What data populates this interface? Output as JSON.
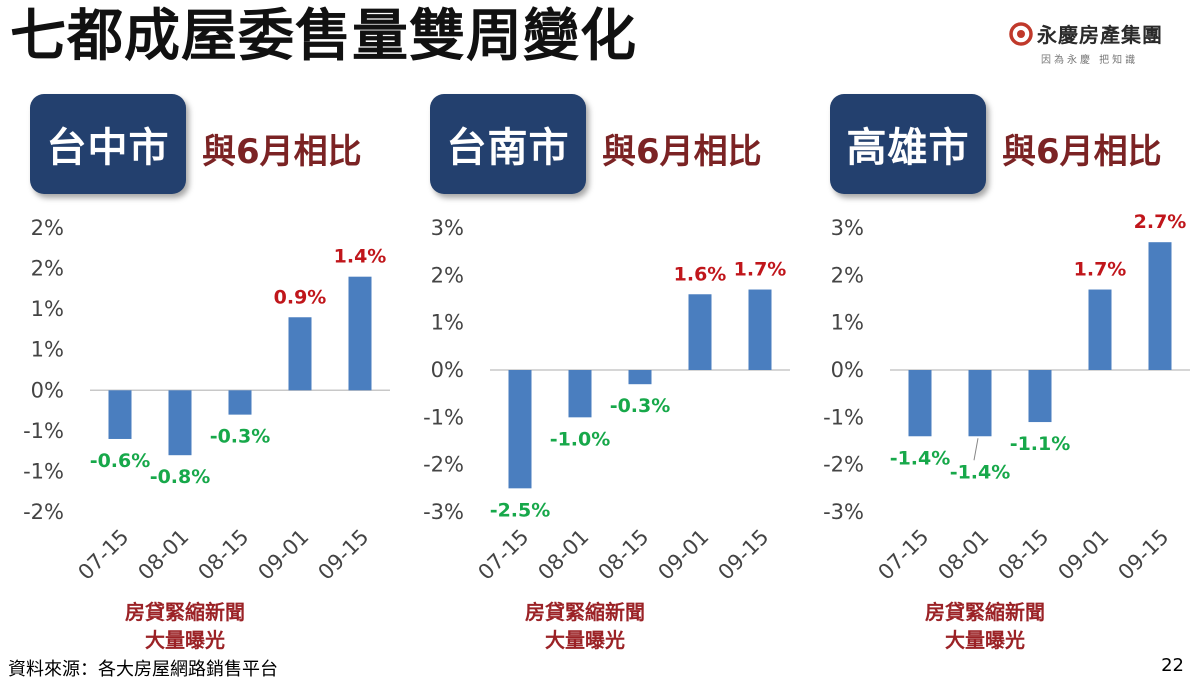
{
  "title": "七都成屋委售量雙周變化",
  "logo": {
    "name": "永慶房產集團",
    "slogan": "因為永慶 把知識",
    "icon": "logo-ring-icon",
    "brand_color": "#c0392b"
  },
  "colors": {
    "bar": "#4a7ebf",
    "positive_label": "#c0161b",
    "negative_label": "#17a84a",
    "badge": "#23406e",
    "compare_text": "#7b2324",
    "note_text": "#9b2226"
  },
  "panels": [
    {
      "city": "台中市",
      "compare": "與6月相比",
      "note_line1": "房貸緊縮新聞",
      "note_line2": "大量曝光"
    },
    {
      "city": "台南市",
      "compare": "與6月相比",
      "note_line1": "房貸緊縮新聞",
      "note_line2": "大量曝光"
    },
    {
      "city": "高雄市",
      "compare": "與6月相比",
      "note_line1": "房貸緊縮新聞",
      "note_line2": "大量曝光"
    }
  ],
  "chart_data": [
    {
      "type": "bar",
      "categories": [
        "07-15",
        "08-01",
        "08-15",
        "09-01",
        "09-15"
      ],
      "values": [
        -0.6,
        -0.8,
        -0.3,
        0.9,
        1.4
      ],
      "data_labels": [
        "-0.6%",
        "-0.8%",
        "-0.3%",
        "0.9%",
        "1.4%"
      ],
      "y_ticks": [
        2,
        1.5,
        1,
        0.5,
        0,
        -0.5,
        -1,
        -1.5
      ],
      "y_tick_labels": [
        "2%",
        "2%",
        "1%",
        "1%",
        "0%",
        "-1%",
        "-1%",
        "-2%"
      ],
      "ylim": [
        -1.5,
        2
      ],
      "xlabel": "",
      "ylabel": "",
      "grid": false,
      "legend": "none"
    },
    {
      "type": "bar",
      "categories": [
        "07-15",
        "08-01",
        "08-15",
        "09-01",
        "09-15"
      ],
      "values": [
        -2.5,
        -1.0,
        -0.3,
        1.6,
        1.7
      ],
      "data_labels": [
        "-2.5%",
        "-1.0%",
        "-0.3%",
        "1.6%",
        "1.7%"
      ],
      "y_ticks": [
        3,
        2,
        1,
        0,
        -1,
        -2,
        -3
      ],
      "y_tick_labels": [
        "3%",
        "2%",
        "1%",
        "0%",
        "-1%",
        "-2%",
        "-3%"
      ],
      "ylim": [
        -3,
        3
      ],
      "xlabel": "",
      "ylabel": "",
      "grid": false,
      "legend": "none"
    },
    {
      "type": "bar",
      "categories": [
        "07-15",
        "08-01",
        "08-15",
        "09-01",
        "09-15"
      ],
      "values": [
        -1.4,
        -1.4,
        -1.1,
        1.7,
        2.7
      ],
      "data_labels": [
        "-1.4%",
        "-1.4%",
        "-1.1%",
        "1.7%",
        "2.7%"
      ],
      "y_ticks": [
        3,
        2,
        1,
        0,
        -1,
        -2,
        -3
      ],
      "y_tick_labels": [
        "3%",
        "2%",
        "1%",
        "0%",
        "-1%",
        "-2%",
        "-3%"
      ],
      "ylim": [
        -3,
        3
      ],
      "xlabel": "",
      "ylabel": "",
      "grid": false,
      "legend": "none"
    }
  ],
  "footer": {
    "source": "資料來源：各大房屋網路銷售平台",
    "page": "22"
  }
}
